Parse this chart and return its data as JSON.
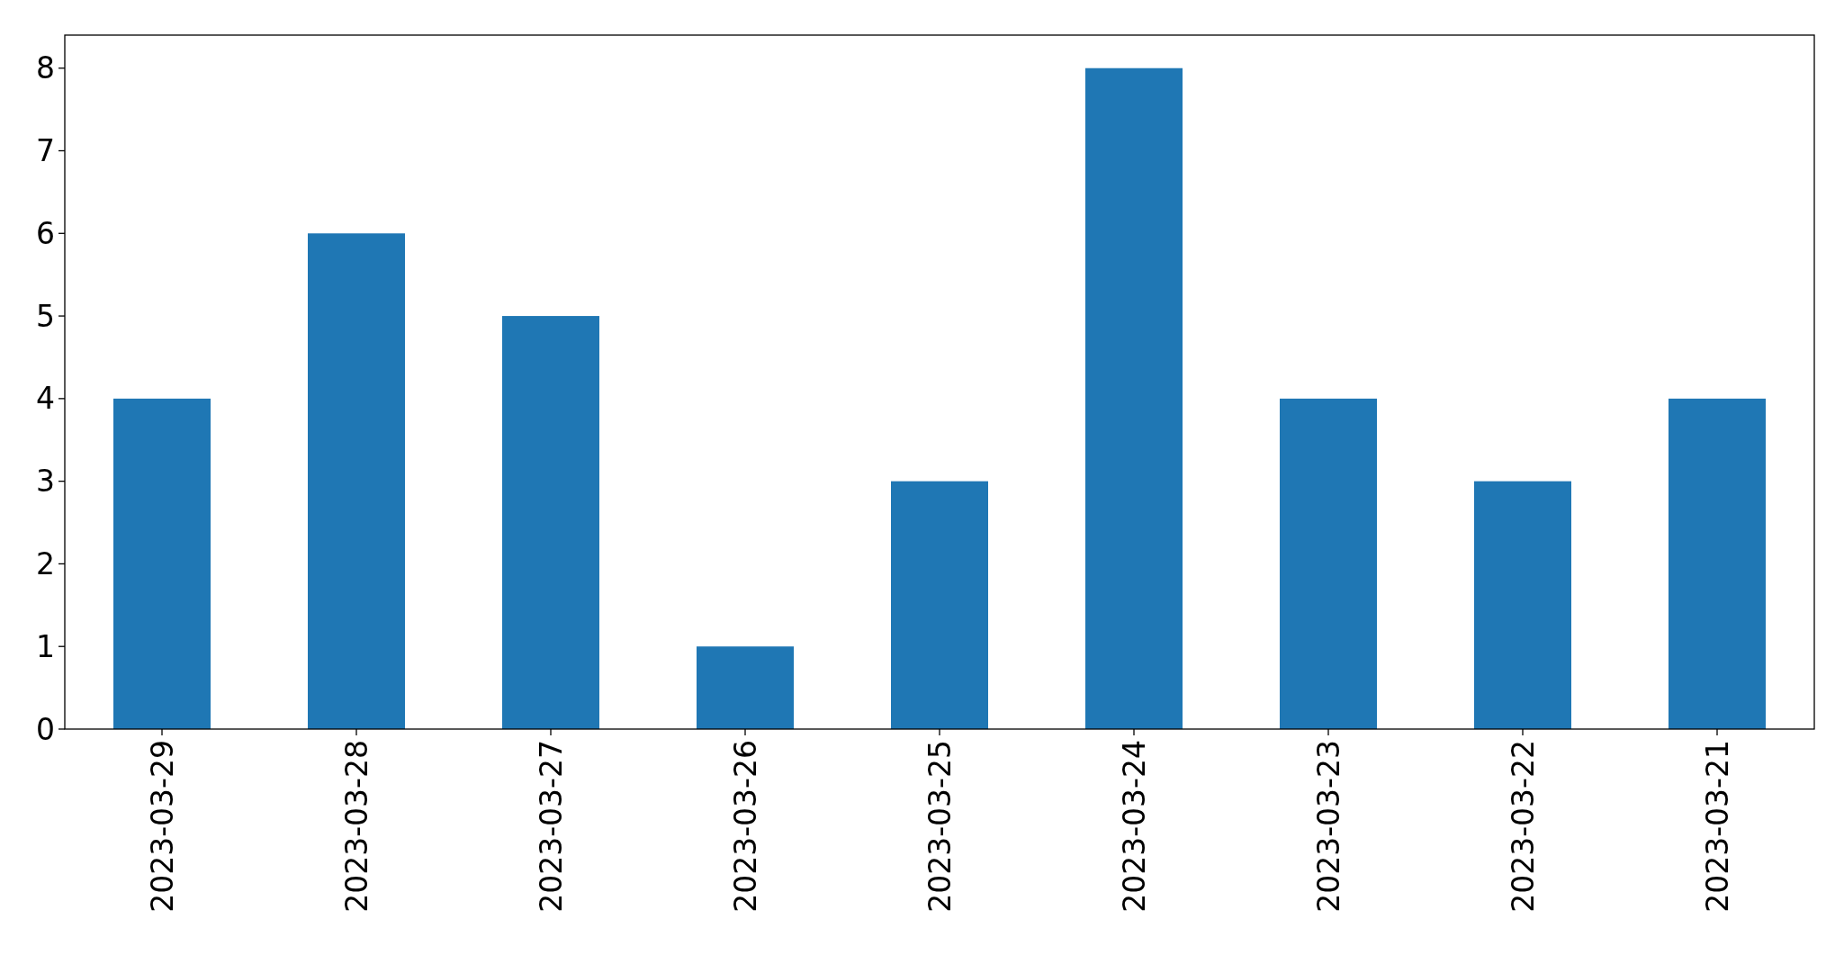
{
  "chart_data": {
    "type": "bar",
    "categories": [
      "2023-03-29",
      "2023-03-28",
      "2023-03-27",
      "2023-03-26",
      "2023-03-25",
      "2023-03-24",
      "2023-03-23",
      "2023-03-22",
      "2023-03-21"
    ],
    "values": [
      4,
      6,
      5,
      1,
      3,
      8,
      4,
      3,
      4
    ],
    "color": "#1f77b4",
    "ylim": [
      0,
      8.4
    ],
    "yticks": [
      0,
      1,
      2,
      3,
      4,
      5,
      6,
      7,
      8
    ],
    "grid": false
  }
}
